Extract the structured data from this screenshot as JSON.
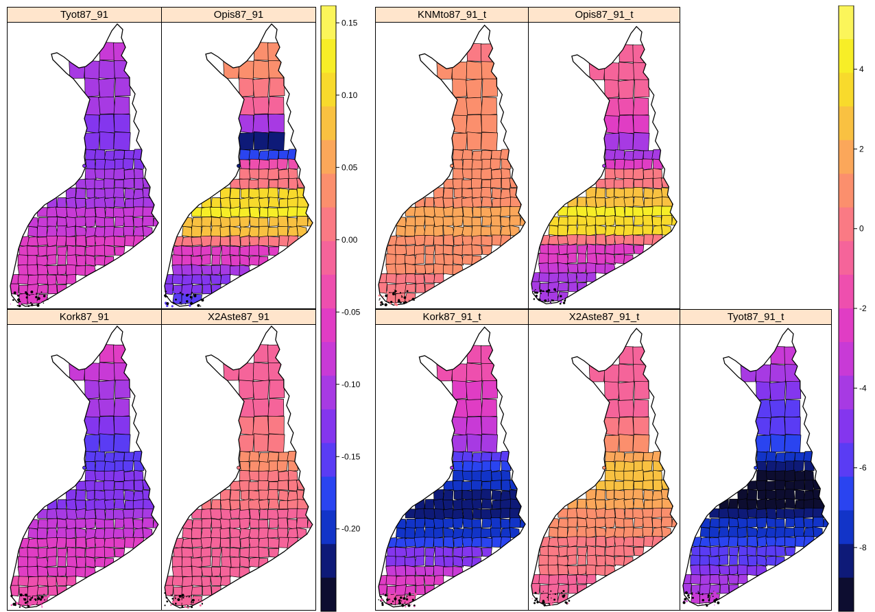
{
  "palette": [
    "#0d0d30",
    "#0e1a78",
    "#1234c8",
    "#2a44f0",
    "#5a3cf4",
    "#8436ee",
    "#a73ae3",
    "#c83ad6",
    "#e03dc4",
    "#ee4fae",
    "#f5649a",
    "#fa7a84",
    "#fb8f6d",
    "#fba75a",
    "#f9c141",
    "#f8da2c",
    "#f7ee27",
    "#fbf55a"
  ],
  "groups": [
    {
      "name": "group-a",
      "colorkey": {
        "ticks": [
          {
            "value": 0.15,
            "label": "0.15"
          },
          {
            "value": 0.1,
            "label": "0.10"
          },
          {
            "value": 0.05,
            "label": "0.05"
          },
          {
            "value": 0.0,
            "label": "0.00"
          },
          {
            "value": -0.05,
            "label": "-0.05"
          },
          {
            "value": -0.1,
            "label": "-0.10"
          },
          {
            "value": -0.15,
            "label": "-0.15"
          },
          {
            "value": -0.2,
            "label": "-0.20"
          }
        ]
      },
      "panels": [
        {
          "title": "Tyot87_91",
          "shades": [
            7,
            7,
            6,
            6,
            6,
            6,
            5,
            5,
            5,
            5,
            6,
            6,
            7,
            7,
            8,
            8,
            8,
            8,
            8
          ]
        },
        {
          "title": "Opis87_91",
          "shades": [
            13,
            12,
            12,
            12,
            11,
            10,
            6,
            1,
            3,
            9,
            11,
            15,
            16,
            14,
            11,
            8,
            6,
            5,
            4
          ]
        },
        {
          "title": "Kork87_91",
          "shades": [
            8,
            8,
            7,
            7,
            6,
            6,
            5,
            4,
            4,
            4,
            5,
            5,
            6,
            7,
            8,
            8,
            8,
            9,
            9
          ]
        },
        {
          "title": "X2Aste87_91",
          "shades": [
            10,
            10,
            10,
            10,
            10,
            10,
            11,
            11,
            12,
            12,
            11,
            11,
            10,
            10,
            10,
            10,
            10,
            10,
            10
          ]
        }
      ]
    },
    {
      "name": "group-b",
      "colorkey": {
        "ticks": [
          {
            "value": 4,
            "label": "4"
          },
          {
            "value": 2,
            "label": "2"
          },
          {
            "value": 0,
            "label": "0"
          },
          {
            "value": -2,
            "label": "-2"
          },
          {
            "value": -4,
            "label": "-4"
          },
          {
            "value": -6,
            "label": "-6"
          },
          {
            "value": -8,
            "label": "-8"
          }
        ]
      },
      "panels": [
        {
          "title": "KNMto87_91_t",
          "shades": [
            11,
            11,
            11,
            12,
            12,
            12,
            12,
            12,
            12,
            12,
            12,
            12,
            13,
            13,
            12,
            12,
            12,
            11,
            11
          ]
        },
        {
          "title": "Opis87_91_t",
          "shades": [
            10,
            10,
            10,
            10,
            10,
            9,
            8,
            6,
            6,
            8,
            11,
            14,
            16,
            15,
            11,
            8,
            7,
            6,
            6
          ]
        },
        {
          "title": "Kork87_91_t",
          "shades": [
            9,
            9,
            9,
            9,
            8,
            8,
            7,
            6,
            4,
            3,
            2,
            1,
            1,
            2,
            3,
            5,
            7,
            8,
            9
          ]
        },
        {
          "title": "X2Aste87_91_t",
          "shades": [
            10,
            10,
            10,
            10,
            10,
            10,
            11,
            12,
            13,
            14,
            14,
            13,
            12,
            12,
            11,
            11,
            11,
            10,
            10
          ]
        },
        {
          "title": "Tyot87_91_t",
          "shades": [
            7,
            7,
            6,
            6,
            5,
            4,
            4,
            3,
            2,
            1,
            0,
            0,
            1,
            2,
            3,
            4,
            5,
            6,
            7
          ]
        }
      ]
    }
  ]
}
